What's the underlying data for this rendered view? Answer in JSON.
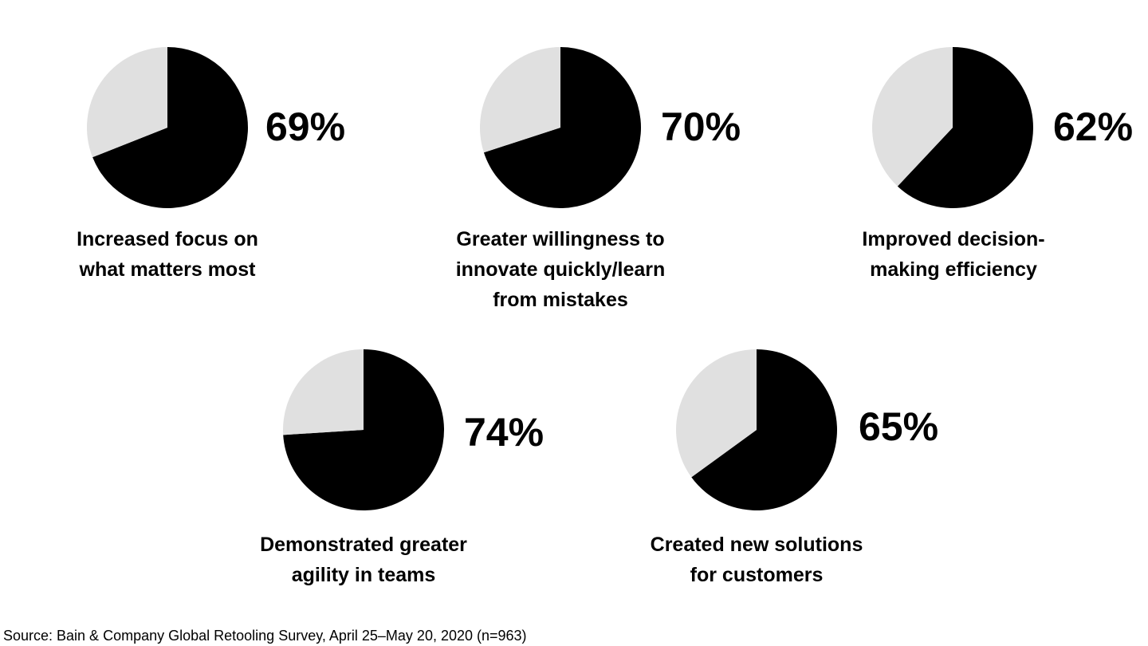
{
  "chart_data": [
    {
      "type": "pie",
      "values": [
        69,
        31
      ],
      "value_label": "69%",
      "label_lines": [
        "Increased focus on",
        "what matters most"
      ]
    },
    {
      "type": "pie",
      "values": [
        70,
        30
      ],
      "value_label": "70%",
      "label_lines": [
        "Greater willingness to",
        "innovate quickly/learn",
        "from mistakes"
      ]
    },
    {
      "type": "pie",
      "values": [
        62,
        38
      ],
      "value_label": "62%",
      "label_lines": [
        "Improved decision-",
        "making efficiency"
      ]
    },
    {
      "type": "pie",
      "values": [
        74,
        26
      ],
      "value_label": "74%",
      "label_lines": [
        "Demonstrated greater",
        "agility in teams"
      ]
    },
    {
      "type": "pie",
      "values": [
        65,
        35
      ],
      "value_label": "65%",
      "label_lines": [
        "Created new solutions",
        "for customers"
      ]
    }
  ],
  "colors": {
    "highlight": "#000000",
    "remainder": "#e0e0e0"
  },
  "source": "Source: Bain & Company Global Retooling Survey, April 25–May 20, 2020 (n=963)"
}
